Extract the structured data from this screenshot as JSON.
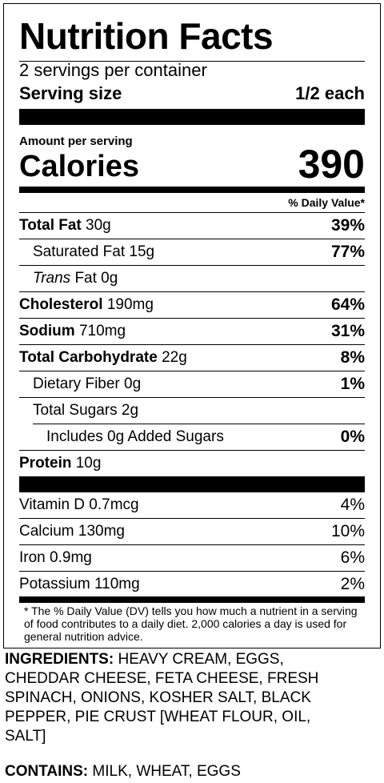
{
  "title": "Nutrition Facts",
  "servings_per_container": "2 servings per container",
  "serving_size": {
    "label": "Serving size",
    "value": "1/2 each"
  },
  "amount_per_serving": "Amount per serving",
  "calories": {
    "label": "Calories",
    "value": "390"
  },
  "daily_value_header": "% Daily Value*",
  "nutrients": [
    {
      "name": "Total Fat",
      "amount": "30g",
      "dv": "39%"
    },
    {
      "name": "Saturated Fat",
      "amount": "15g",
      "dv": "77%"
    },
    {
      "name": "Trans",
      "amount": "Fat 0g",
      "dv": ""
    },
    {
      "name": "Cholesterol",
      "amount": "190mg",
      "dv": "64%"
    },
    {
      "name": "Sodium",
      "amount": "710mg",
      "dv": "31%"
    },
    {
      "name": "Total Carbohydrate",
      "amount": "22g",
      "dv": "8%"
    },
    {
      "name": "Dietary Fiber",
      "amount": "0g",
      "dv": "1%"
    },
    {
      "name": "Total Sugars",
      "amount": "2g",
      "dv": ""
    },
    {
      "name": "Includes 0g Added Sugars",
      "amount": "",
      "dv": "0%"
    },
    {
      "name": "Protein",
      "amount": "10g",
      "dv": ""
    }
  ],
  "vitamins": [
    {
      "name": "Vitamin D",
      "amount": "0.7mcg",
      "dv": "4%"
    },
    {
      "name": "Calcium",
      "amount": "130mg",
      "dv": "10%"
    },
    {
      "name": "Iron",
      "amount": "0.9mg",
      "dv": "6%"
    },
    {
      "name": "Potassium",
      "amount": "110mg",
      "dv": "2%"
    }
  ],
  "footnote": "* The % Daily Value (DV) tells you how much a nutrient in a serving of food contributes to a daily diet. 2,000 calories a day is used for general nutrition advice.",
  "ingredients": {
    "label": "INGREDIENTS:",
    "text": "HEAVY CREAM, EGGS, CHEDDAR CHEESE, FETA CHEESE, FRESH SPINACH, ONIONS, KOSHER SALT, BLACK PEPPER, PIE CRUST [WHEAT FLOUR, OIL, SALT]"
  },
  "contains": {
    "label": "CONTAINS:",
    "text": "MILK, WHEAT, EGGS"
  }
}
